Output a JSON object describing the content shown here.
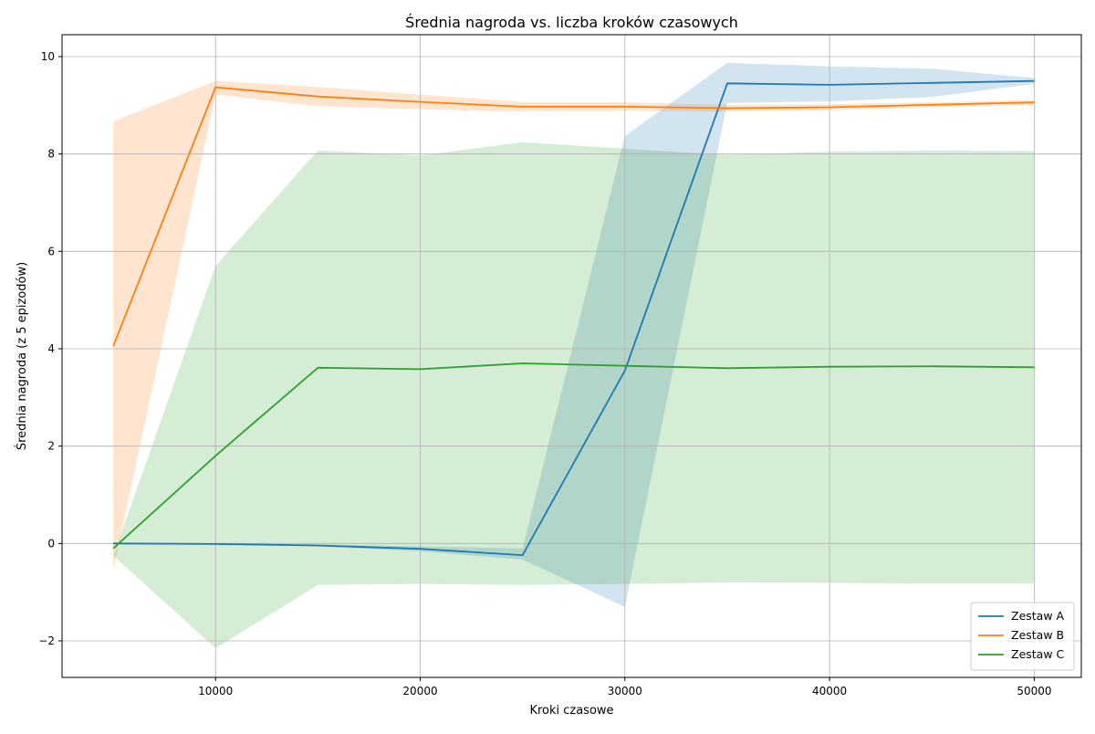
{
  "chart_data": {
    "type": "line",
    "title": "Średnia nagroda vs. liczba kroków czasowych",
    "xlabel": "Kroki czasowe",
    "ylabel": "Średnia nagroda (z 5 epizodów)",
    "xlim": [
      2500,
      52300
    ],
    "ylim": [
      -2.75,
      10.45
    ],
    "xticks": [
      10000,
      20000,
      30000,
      40000,
      50000
    ],
    "yticks": [
      -2,
      0,
      2,
      4,
      6,
      8,
      10
    ],
    "grid": true,
    "legend_position": "bottom-right",
    "x": [
      5000,
      10000,
      15000,
      20000,
      25000,
      30000,
      35000,
      40000,
      45000,
      50000
    ],
    "series": [
      {
        "name": "Zestaw A",
        "color": "#1f77b4",
        "values": [
          0.0,
          -0.01,
          -0.04,
          -0.11,
          -0.24,
          3.55,
          9.45,
          9.42,
          9.46,
          9.5
        ],
        "lower": [
          0.0,
          -0.02,
          -0.06,
          -0.16,
          -0.33,
          -1.3,
          9.05,
          9.08,
          9.17,
          9.44
        ],
        "upper": [
          0.0,
          0.0,
          -0.02,
          -0.06,
          -0.1,
          8.37,
          9.87,
          9.8,
          9.75,
          9.56
        ]
      },
      {
        "name": "Zestaw B",
        "color": "#ff7f0e",
        "values": [
          4.05,
          9.37,
          9.18,
          9.07,
          8.97,
          8.97,
          8.94,
          8.96,
          9.01,
          9.06
        ],
        "lower": [
          -0.55,
          9.22,
          8.98,
          8.92,
          8.87,
          8.89,
          8.87,
          8.9,
          8.96,
          9.01
        ],
        "upper": [
          8.67,
          9.5,
          9.38,
          9.22,
          9.07,
          9.06,
          9.01,
          9.02,
          9.06,
          9.11
        ]
      },
      {
        "name": "Zestaw C",
        "color": "#2ca02c",
        "values": [
          -0.1,
          1.8,
          3.61,
          3.58,
          3.7,
          3.65,
          3.6,
          3.63,
          3.64,
          3.62
        ],
        "lower": [
          -0.25,
          -2.15,
          -0.85,
          -0.83,
          -0.85,
          -0.83,
          -0.8,
          -0.81,
          -0.82,
          -0.82
        ],
        "upper": [
          -0.25,
          5.7,
          8.07,
          7.97,
          8.24,
          8.11,
          7.98,
          8.05,
          8.07,
          8.06
        ]
      }
    ]
  }
}
